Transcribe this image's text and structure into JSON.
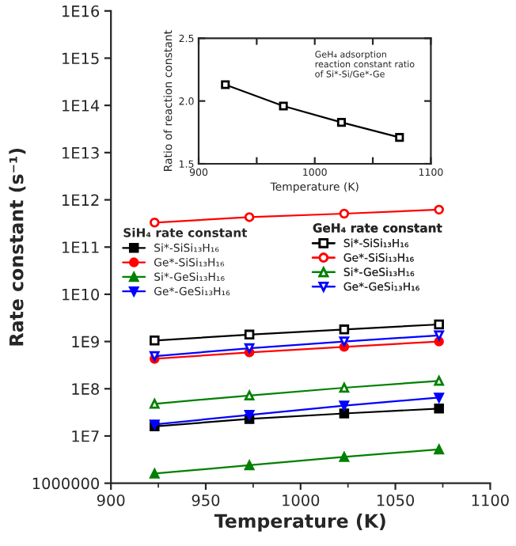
{
  "chart_data": [
    {
      "type": "line",
      "xlabel": "Temperature (K)",
      "ylabel": "Rate constant (s⁻¹)",
      "log": "y",
      "xlim": [
        900,
        1100
      ],
      "ylim": [
        1000000,
        1e+16
      ],
      "xticks": [
        900,
        950,
        1000,
        1050,
        1100
      ],
      "yticks": [
        {
          "value": 1000000,
          "label": "1000000"
        },
        {
          "value": 10000000.0,
          "label": "1E7"
        },
        {
          "value": 100000000.0,
          "label": "1E8"
        },
        {
          "value": 1000000000.0,
          "label": "1E9"
        },
        {
          "value": 10000000000.0,
          "label": "1E10"
        },
        {
          "value": 100000000000.0,
          "label": "1E11"
        },
        {
          "value": 1000000000000.0,
          "label": "1E12"
        },
        {
          "value": 10000000000000.0,
          "label": "1E13"
        },
        {
          "value": 100000000000000.0,
          "label": "1E14"
        },
        {
          "value": 1000000000000000.0,
          "label": "1E15"
        },
        {
          "value": 1e+16,
          "label": "1E16"
        }
      ],
      "grid": false,
      "legend": "center",
      "annotations": [
        "SiH₄ rate constant",
        "GeH₄ rate constant"
      ],
      "x": [
        923,
        973,
        1023,
        1073
      ],
      "series": [
        {
          "name": "Si*-SiSi₁₃H₁₆",
          "color": "#000000",
          "marker": "square",
          "values": [
            16000000.0,
            23000000.0,
            30000000.0,
            38000000.0
          ]
        },
        {
          "name": "Ge*-SiSi₁₃H₁₆",
          "color": "#ff0000",
          "marker": "circle",
          "values": [
            430000000.0,
            590000000.0,
            770000000.0,
            1000000000.0
          ]
        },
        {
          "name": "Si*-GeSi₁₃H₁₆",
          "color": "#008000",
          "marker": "triangle",
          "values": [
            1600000.0,
            2400000.0,
            3600000.0,
            5200000.0
          ]
        },
        {
          "name": "Ge*-GeSi₁₃H₁₆",
          "color": "#0000ff",
          "marker": "triangle_down",
          "values": [
            17500000.0,
            28000000.0,
            44000000.0,
            65000000.0
          ]
        },
        {
          "name": "Si*-SiSi₁₃H₁₆",
          "color": "#000000",
          "marker": "square",
          "values": [
            1050000000.0,
            1400000000.0,
            1800000000.0,
            2300000000.0
          ]
        },
        {
          "name": "Ge*-SiSi₁₃H₁₆",
          "color": "#ff0000",
          "marker": "circle",
          "values": [
            330000000000.0,
            430000000000.0,
            510000000000.0,
            620000000000.0
          ]
        },
        {
          "name": "Si*-GeSi₁₃H₁₆",
          "color": "#008000",
          "marker": "triangle",
          "values": [
            48000000.0,
            72000000.0,
            105000000.0,
            147000000.0
          ]
        },
        {
          "name": "Ge*-GeSi₁₃H₁₆",
          "color": "#0000ff",
          "marker": "triangle_down",
          "values": [
            490000000.0,
            720000000.0,
            1000000000.0,
            1350000000.0
          ]
        }
      ]
    },
    {
      "type": "line",
      "xlabel": "Temperature (K)",
      "ylabel": "Ratio of reaction constant",
      "xlim": [
        900,
        1100
      ],
      "ylim": [
        1.5,
        2.5
      ],
      "xticks": [
        900,
        {
          "value": 950,
          "label": null
        },
        1000,
        {
          "value": 1050,
          "label": null
        },
        1100
      ],
      "yticks": [
        {
          "value": 1.5,
          "label": "1.5"
        },
        {
          "value": 2.0,
          "label": "2.0"
        },
        {
          "value": 2.5,
          "label": "2.5"
        }
      ],
      "grid": false,
      "annotations": [
        "GeH₄ adsorption\nreaction constant ratio\nof Si*-Si/Ge*-Ge"
      ],
      "x": [
        923,
        973,
        1023,
        1073
      ],
      "series": [
        {
          "color": "#000000",
          "marker": "square",
          "values": [
            2.13,
            1.96,
            1.83,
            1.71
          ]
        }
      ]
    }
  ]
}
